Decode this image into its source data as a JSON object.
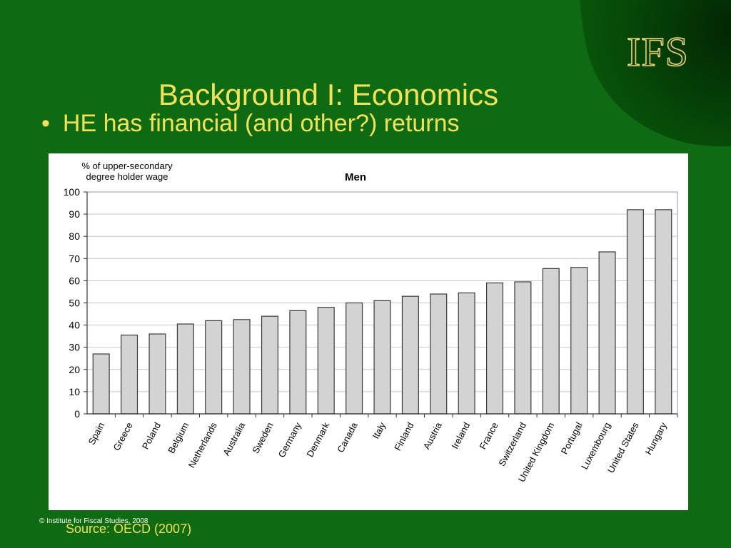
{
  "slide": {
    "title": "Background I: Economics",
    "bullet": "HE has financial (and other?) returns",
    "source": "Source: OECD (2007)",
    "copyright": "© Institute for Fiscal Studies, 2008",
    "logo_text": "IFS"
  },
  "colors": {
    "background": "#0f6b12",
    "title": "#f2e25a",
    "bar_fill": "#d3d3d3",
    "bar_stroke": "#3a3a3a"
  },
  "chart_data": {
    "type": "bar",
    "title": "Men",
    "ylabel": "% of upper-secondary degree holder wage",
    "ylabel_lines": [
      "% of upper-secondary",
      "degree holder wage"
    ],
    "xlabel": "",
    "ylim": [
      0,
      100
    ],
    "yticks": [
      0,
      10,
      20,
      30,
      40,
      50,
      60,
      70,
      80,
      90,
      100
    ],
    "grid": true,
    "categories": [
      "Spain",
      "Greece",
      "Poland",
      "Belgium",
      "Netherlands",
      "Australia",
      "Sweden",
      "Germany",
      "Denmark",
      "Canada",
      "Italy",
      "Finland",
      "Austria",
      "Ireland",
      "France",
      "Switzerland",
      "United Kingdom",
      "Portugal",
      "Luxembourg",
      "United States",
      "Hungary"
    ],
    "values": [
      27,
      35.5,
      36,
      40.5,
      42,
      42.5,
      44,
      46.5,
      48,
      50,
      51,
      53,
      54,
      54.5,
      59,
      59.5,
      65.5,
      66,
      73,
      92,
      92
    ]
  }
}
